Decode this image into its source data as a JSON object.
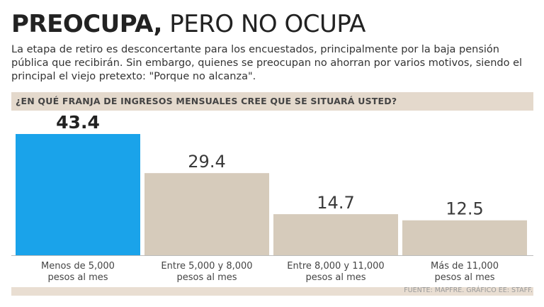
{
  "header": {
    "title_bold": "PREOCUPA,",
    "title_light": " PERO NO OCUPA",
    "subtitle": "La etapa de retiro es desconcertante para los encuestados, principalmente por la baja pensión pública que recibirán. Sin embargo, quienes se preocupan no ahorran por varios motivos, siendo el principal el viejo pretexto: \"Porque no alcanza\"."
  },
  "colors": {
    "highlight": "#1aa3ea",
    "bar": "#d6cbbb",
    "axis": "#bbbbbb",
    "band": "#e4d9cc"
  },
  "chart_data": {
    "type": "bar",
    "title": "¿EN QUÉ FRANJA DE INGRESOS MENSUALES CREE QUE SE SITUARÁ USTED?",
    "categories": [
      [
        "Menos de 5,000",
        "pesos al mes"
      ],
      [
        "Entre 5,000 y 8,000",
        "pesos al mes"
      ],
      [
        "Entre 8,000 y 11,000",
        "pesos al mes"
      ],
      [
        "Más de 11,000",
        "pesos al mes"
      ]
    ],
    "values": [
      43.4,
      29.4,
      14.7,
      12.5
    ],
    "value_labels": [
      "43.4",
      "29.4",
      "14.7",
      "12.5"
    ],
    "highlight_index": 0,
    "xlabel": "",
    "ylabel": "",
    "ylim": [
      0,
      43.4
    ],
    "grid": false
  },
  "footer": {
    "source": "FUENTE: MAPFRE. GRÁFICO EE: STAFF."
  }
}
